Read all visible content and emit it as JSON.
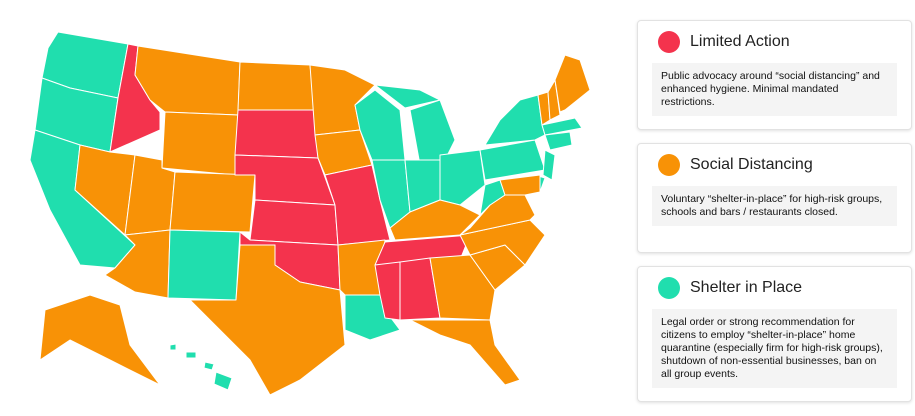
{
  "legend": [
    {
      "title": "Limited Action",
      "color": "#f4334d",
      "description": "Public advocacy around “social distancing” and enhanced hygiene. Minimal mandated restrictions."
    },
    {
      "title": "Social Distancing",
      "color": "#f89206",
      "description": "Voluntary “shelter-in-place” for high-risk groups, schools and bars / restaurants closed."
    },
    {
      "title": "Shelter in Place",
      "color": "#20deae",
      "description": "Legal order or strong recommendation for citizens to employ “shelter-in-place” home quarantine (especially firm for high-risk groups), shutdown of non-essential businesses, ban on all group events."
    }
  ]
}
